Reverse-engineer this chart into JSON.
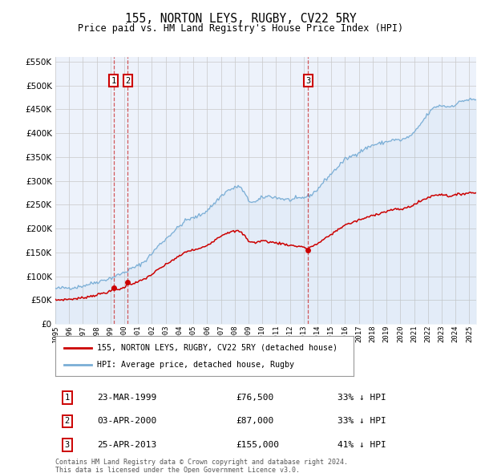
{
  "title": "155, NORTON LEYS, RUGBY, CV22 5RY",
  "subtitle": "Price paid vs. HM Land Registry's House Price Index (HPI)",
  "legend_label_red": "155, NORTON LEYS, RUGBY, CV22 5RY (detached house)",
  "legend_label_blue": "HPI: Average price, detached house, Rugby",
  "footnote1": "Contains HM Land Registry data © Crown copyright and database right 2024.",
  "footnote2": "This data is licensed under the Open Government Licence v3.0.",
  "transactions": [
    {
      "num": 1,
      "date": "23-MAR-1999",
      "price": 76500,
      "pct": "33%",
      "dir": "↓",
      "decimal_year": 1999.22
    },
    {
      "num": 2,
      "date": "03-APR-2000",
      "price": 87000,
      "pct": "33%",
      "dir": "↓",
      "decimal_year": 2000.25
    },
    {
      "num": 3,
      "date": "25-APR-2013",
      "price": 155000,
      "pct": "41%",
      "dir": "↓",
      "decimal_year": 2013.32
    }
  ],
  "hpi_anchors": [
    [
      1995.0,
      74000
    ],
    [
      1995.5,
      75500
    ],
    [
      1996.0,
      76000
    ],
    [
      1996.5,
      77000
    ],
    [
      1997.0,
      80000
    ],
    [
      1997.5,
      84000
    ],
    [
      1998.0,
      88000
    ],
    [
      1998.5,
      92000
    ],
    [
      1999.0,
      96000
    ],
    [
      1999.5,
      102000
    ],
    [
      2000.0,
      108000
    ],
    [
      2000.5,
      116000
    ],
    [
      2001.0,
      122000
    ],
    [
      2001.5,
      132000
    ],
    [
      2002.0,
      148000
    ],
    [
      2002.5,
      165000
    ],
    [
      2003.0,
      178000
    ],
    [
      2003.5,
      192000
    ],
    [
      2004.0,
      205000
    ],
    [
      2004.5,
      218000
    ],
    [
      2005.0,
      222000
    ],
    [
      2005.5,
      228000
    ],
    [
      2006.0,
      238000
    ],
    [
      2006.5,
      252000
    ],
    [
      2007.0,
      268000
    ],
    [
      2007.5,
      280000
    ],
    [
      2008.0,
      285000
    ],
    [
      2008.3,
      290000
    ],
    [
      2008.7,
      275000
    ],
    [
      2009.0,
      258000
    ],
    [
      2009.5,
      255000
    ],
    [
      2010.0,
      265000
    ],
    [
      2010.5,
      268000
    ],
    [
      2011.0,
      265000
    ],
    [
      2011.5,
      262000
    ],
    [
      2012.0,
      260000
    ],
    [
      2012.5,
      262000
    ],
    [
      2013.0,
      265000
    ],
    [
      2013.5,
      270000
    ],
    [
      2014.0,
      282000
    ],
    [
      2014.5,
      300000
    ],
    [
      2015.0,
      315000
    ],
    [
      2015.5,
      330000
    ],
    [
      2016.0,
      345000
    ],
    [
      2016.5,
      352000
    ],
    [
      2017.0,
      360000
    ],
    [
      2017.5,
      368000
    ],
    [
      2018.0,
      375000
    ],
    [
      2018.5,
      378000
    ],
    [
      2019.0,
      382000
    ],
    [
      2019.5,
      386000
    ],
    [
      2020.0,
      385000
    ],
    [
      2020.5,
      390000
    ],
    [
      2021.0,
      400000
    ],
    [
      2021.5,
      420000
    ],
    [
      2022.0,
      440000
    ],
    [
      2022.5,
      455000
    ],
    [
      2023.0,
      458000
    ],
    [
      2023.5,
      455000
    ],
    [
      2024.0,
      460000
    ],
    [
      2024.5,
      468000
    ],
    [
      2025.0,
      470000
    ]
  ],
  "red_anchors": [
    [
      1995.0,
      50000
    ],
    [
      1995.5,
      51000
    ],
    [
      1996.0,
      52000
    ],
    [
      1996.5,
      53000
    ],
    [
      1997.0,
      55000
    ],
    [
      1997.5,
      58000
    ],
    [
      1998.0,
      61000
    ],
    [
      1998.5,
      65000
    ],
    [
      1999.0,
      68000
    ],
    [
      1999.22,
      76500
    ],
    [
      1999.5,
      72000
    ],
    [
      2000.0,
      76000
    ],
    [
      2000.25,
      87000
    ],
    [
      2000.5,
      84000
    ],
    [
      2001.0,
      88000
    ],
    [
      2001.5,
      95000
    ],
    [
      2002.0,
      104000
    ],
    [
      2002.5,
      115000
    ],
    [
      2003.0,
      124000
    ],
    [
      2003.5,
      134000
    ],
    [
      2004.0,
      142000
    ],
    [
      2004.5,
      152000
    ],
    [
      2005.0,
      155000
    ],
    [
      2005.5,
      158000
    ],
    [
      2006.0,
      165000
    ],
    [
      2006.5,
      175000
    ],
    [
      2007.0,
      185000
    ],
    [
      2007.5,
      192000
    ],
    [
      2008.0,
      194000
    ],
    [
      2008.3,
      195000
    ],
    [
      2008.7,
      186000
    ],
    [
      2009.0,
      174000
    ],
    [
      2009.5,
      170000
    ],
    [
      2010.0,
      175000
    ],
    [
      2010.5,
      172000
    ],
    [
      2011.0,
      170000
    ],
    [
      2011.5,
      168000
    ],
    [
      2012.0,
      165000
    ],
    [
      2012.5,
      163000
    ],
    [
      2013.0,
      162000
    ],
    [
      2013.32,
      155000
    ],
    [
      2013.5,
      162000
    ],
    [
      2014.0,
      168000
    ],
    [
      2014.5,
      178000
    ],
    [
      2015.0,
      188000
    ],
    [
      2015.5,
      198000
    ],
    [
      2016.0,
      208000
    ],
    [
      2016.5,
      212000
    ],
    [
      2017.0,
      218000
    ],
    [
      2017.5,
      222000
    ],
    [
      2018.0,
      228000
    ],
    [
      2018.5,
      232000
    ],
    [
      2019.0,
      236000
    ],
    [
      2019.5,
      240000
    ],
    [
      2020.0,
      240000
    ],
    [
      2020.5,
      244000
    ],
    [
      2021.0,
      250000
    ],
    [
      2021.5,
      258000
    ],
    [
      2022.0,
      265000
    ],
    [
      2022.5,
      270000
    ],
    [
      2023.0,
      272000
    ],
    [
      2023.5,
      268000
    ],
    [
      2024.0,
      270000
    ],
    [
      2024.5,
      273000
    ],
    [
      2025.0,
      275000
    ]
  ],
  "ylim": [
    0,
    560000
  ],
  "xlim_start": 1995.0,
  "xlim_end": 2025.5,
  "plot_bg": "#edf2fb",
  "red_color": "#cc0000",
  "blue_color": "#7aaed6",
  "grid_color": "#c8c8c8"
}
